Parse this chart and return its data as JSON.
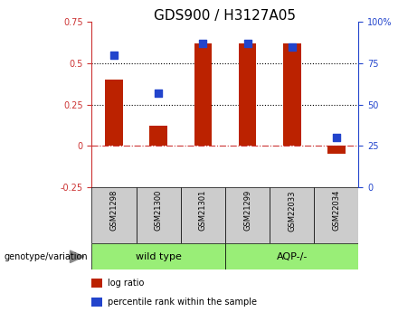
{
  "title": "GDS900 / H3127A05",
  "categories": [
    "GSM21298",
    "GSM21300",
    "GSM21301",
    "GSM21299",
    "GSM22033",
    "GSM22034"
  ],
  "log_ratio": [
    0.4,
    0.12,
    0.62,
    0.62,
    0.62,
    -0.05
  ],
  "percentile_rank": [
    80,
    57,
    87,
    87,
    85,
    30
  ],
  "group_labels": [
    "wild type",
    "AQP-/-"
  ],
  "group_ranges": [
    [
      0,
      3
    ],
    [
      3,
      6
    ]
  ],
  "ylim_left": [
    -0.25,
    0.75
  ],
  "ylim_right": [
    0,
    100
  ],
  "yticks_left": [
    -0.25,
    0,
    0.25,
    0.5,
    0.75
  ],
  "yticks_right": [
    0,
    25,
    50,
    75,
    100
  ],
  "hlines": [
    0.25,
    0.5
  ],
  "bar_color": "#bb2200",
  "dot_color": "#2244cc",
  "zero_line_color": "#cc3333",
  "genotype_label": "genotype/variation",
  "legend_items": [
    "log ratio",
    "percentile rank within the sample"
  ],
  "group_bg_color": "#99ee77",
  "sample_box_color": "#cccccc",
  "title_fontsize": 11,
  "axis_fontsize": 7,
  "label_fontsize": 7
}
